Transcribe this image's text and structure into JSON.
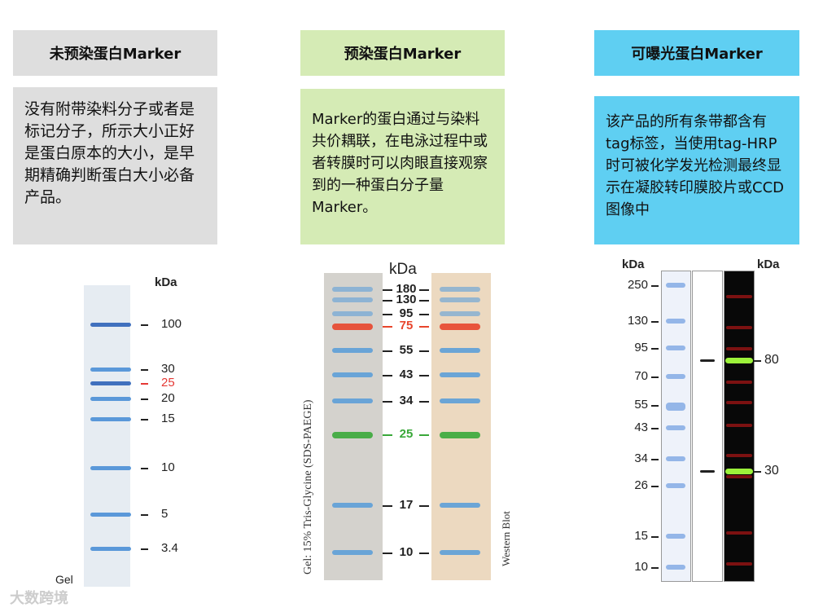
{
  "panels": [
    {
      "title": "未预染蛋白Marker",
      "text": "没有附带染料分子或者是标记分子，所示大小正好是蛋白原本的大小，是早期精确判断蛋白大小必备产品。",
      "color": "#dedede"
    },
    {
      "title": "预染蛋白Marker",
      "text": "Marker的蛋白通过与染料共价耦联，在电泳过程中或者转膜时可以肉眼直接观察到的一种蛋白分子量Marker。",
      "color": "#d5ebb5"
    },
    {
      "title": "可曝光蛋白Marker",
      "text": "该产品的所有条带都含有tag标签，当使用tag-HRP时可被化学发光检测最终显示在凝胶转印膜胶片或CCD图像中",
      "color": "#5fcff2"
    }
  ],
  "gel1": {
    "unit": "kDa",
    "caption": "Gel",
    "labels": [
      "100",
      "30",
      "25",
      "20",
      "15",
      "10",
      "5",
      "3.4"
    ],
    "highlight": {
      "label": "25",
      "color": "#e53935"
    }
  },
  "gel2": {
    "unit": "kDa",
    "left_caption": "Gel: 15% Tris-Glycine (SDS-PAEGE)",
    "right_caption": "Western Blot",
    "labels": [
      "180",
      "130",
      "95",
      "75",
      "55",
      "43",
      "34",
      "25",
      "17",
      "10"
    ],
    "colors": {
      "75": "#e8452c",
      "25": "#3aa83a"
    }
  },
  "gel3": {
    "unit_left": "kDa",
    "unit_right": "kDa",
    "left_labels": [
      "250",
      "130",
      "95",
      "70",
      "55",
      "43",
      "34",
      "26",
      "15",
      "10"
    ],
    "right_labels": [
      "80",
      "30"
    ]
  },
  "watermark": "大数跨境"
}
